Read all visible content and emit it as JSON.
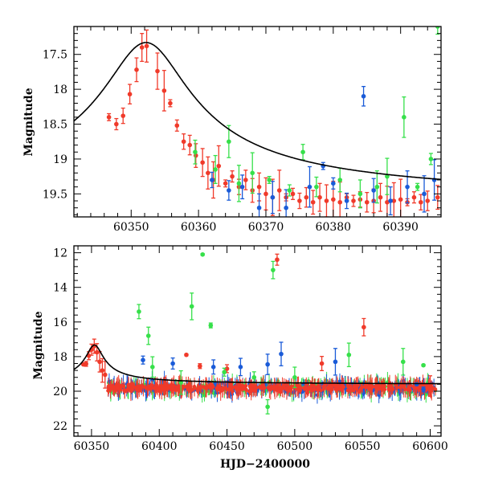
{
  "chart_data": [
    {
      "type": "scatter",
      "panel": "top",
      "title": "",
      "xlabel": "",
      "ylabel": "Magnitude",
      "xlim": [
        60341.5,
        60396
      ],
      "ylim": [
        19.83,
        17.1
      ],
      "y_inverted": true,
      "xticks": [
        60350,
        60360,
        60370,
        60380,
        60390
      ],
      "yticks": [
        17.5,
        18,
        18.5,
        19,
        19.5
      ],
      "grid": false,
      "legend": "none",
      "model_curve": {
        "color": "#000000",
        "peak_time": 60352.2,
        "peak_mag": 17.33,
        "baseline_mag": 19.62
      },
      "series": [
        {
          "color": "#f03a2a",
          "points": [
            [
              60346.7,
              18.4
            ],
            [
              60347.8,
              18.5
            ],
            [
              60348.8,
              18.38
            ],
            [
              60349.8,
              18.07
            ],
            [
              60350.8,
              17.72
            ],
            [
              60351.6,
              17.4
            ],
            [
              60352.3,
              17.38
            ],
            [
              60353.9,
              17.74
            ],
            [
              60354.9,
              18.02
            ],
            [
              60355.8,
              18.2
            ],
            [
              60356.8,
              18.52
            ],
            [
              60357.8,
              18.75
            ],
            [
              60358.7,
              18.8
            ],
            [
              60359.6,
              18.95
            ],
            [
              60360.6,
              19.05
            ],
            [
              60361.4,
              19.2
            ],
            [
              60362.2,
              19.3
            ],
            [
              60363.0,
              19.1
            ],
            [
              60364.0,
              19.35
            ],
            [
              60365.0,
              19.25
            ],
            [
              60366.0,
              19.4
            ],
            [
              60367.0,
              19.3
            ],
            [
              60368.0,
              19.45
            ],
            [
              60369.0,
              19.4
            ],
            [
              60370.0,
              19.5
            ],
            [
              60371.0,
              19.55
            ],
            [
              60372.0,
              19.45
            ],
            [
              60373.0,
              19.55
            ],
            [
              60374.0,
              19.5
            ],
            [
              60375.0,
              19.6
            ],
            [
              60376.0,
              19.55
            ],
            [
              60377.0,
              19.62
            ],
            [
              60378.0,
              19.55
            ],
            [
              60379.0,
              19.6
            ],
            [
              60380.0,
              19.58
            ],
            [
              60381.0,
              19.62
            ],
            [
              60382.0,
              19.55
            ],
            [
              60383.0,
              19.6
            ],
            [
              60384.0,
              19.58
            ],
            [
              60385.0,
              19.62
            ],
            [
              60386.0,
              19.6
            ],
            [
              60387.0,
              19.55
            ],
            [
              60388.0,
              19.62
            ],
            [
              60389.0,
              19.6
            ],
            [
              60390.0,
              19.58
            ],
            [
              60391.0,
              19.62
            ],
            [
              60392.0,
              19.55
            ],
            [
              60393.0,
              19.62
            ],
            [
              60394.0,
              19.6
            ],
            [
              60395.5,
              19.55
            ]
          ]
        },
        {
          "color": "#1a5bd8",
          "points": [
            [
              60362.0,
              19.3
            ],
            [
              60364.5,
              19.45
            ],
            [
              60366.5,
              19.4
            ],
            [
              60369.0,
              19.7
            ],
            [
              60371.0,
              19.55
            ],
            [
              60373.0,
              19.7
            ],
            [
              60376.5,
              19.4
            ],
            [
              60378.5,
              19.1
            ],
            [
              60380.0,
              19.35
            ],
            [
              60382.0,
              19.6
            ],
            [
              60384.5,
              18.1
            ],
            [
              60386.0,
              19.45
            ],
            [
              60388.5,
              19.6
            ],
            [
              60391.0,
              19.4
            ],
            [
              60393.5,
              19.5
            ],
            [
              60395.0,
              19.3
            ]
          ]
        },
        {
          "color": "#36e04a",
          "points": [
            [
              60359.5,
              18.9
            ],
            [
              60362.5,
              19.15
            ],
            [
              60364.5,
              18.75
            ],
            [
              60366.0,
              19.35
            ],
            [
              60368.0,
              19.2
            ],
            [
              60370.5,
              19.3
            ],
            [
              60373.5,
              19.45
            ],
            [
              60375.5,
              18.9
            ],
            [
              60377.5,
              19.4
            ],
            [
              60381.0,
              19.3
            ],
            [
              60384.0,
              19.5
            ],
            [
              60386.5,
              19.4
            ],
            [
              60388.0,
              19.25
            ],
            [
              60390.5,
              18.4
            ],
            [
              60392.5,
              19.4
            ],
            [
              60394.5,
              19.0
            ],
            [
              60395.5,
              17.1
            ]
          ]
        }
      ]
    },
    {
      "type": "scatter",
      "panel": "bottom",
      "title": "",
      "xlabel": "HJD−2400000",
      "ylabel": "Magnitude",
      "xlim": [
        60337,
        60608
      ],
      "ylim": [
        22.6,
        11.6
      ],
      "y_inverted": true,
      "xticks": [
        60350,
        60400,
        60450,
        60500,
        60550,
        60600
      ],
      "yticks": [
        12,
        14,
        16,
        18,
        20,
        22
      ],
      "grid": false,
      "legend": "none",
      "model_curve": {
        "color": "#000000",
        "peak_time": 60352.2,
        "peak_mag": 17.33,
        "baseline_mag": 19.62
      },
      "series": [
        {
          "color": "#f03a2a",
          "points": [
            [
              60344,
              18.45
            ],
            [
              60346,
              18.42
            ],
            [
              60348,
              17.95
            ],
            [
              60350,
              17.6
            ],
            [
              60352,
              17.4
            ],
            [
              60354,
              17.75
            ],
            [
              60356,
              18.3
            ],
            [
              60358,
              18.8
            ],
            [
              60360,
              19.05
            ],
            [
              60420,
              17.9
            ],
            [
              60430,
              18.55
            ],
            [
              60450,
              18.7
            ],
            [
              60487,
              12.4
            ],
            [
              60520,
              18.4
            ],
            [
              60551,
              16.3
            ],
            [
              60600,
              19.7
            ]
          ]
        },
        {
          "color": "#1a5bd8",
          "points": [
            [
              60388,
              18.2
            ],
            [
              60410,
              18.4
            ],
            [
              60440,
              18.6
            ],
            [
              60460,
              18.6
            ],
            [
              60480,
              18.45
            ],
            [
              60490,
              17.85
            ],
            [
              60530,
              18.3
            ],
            [
              60590,
              19.6
            ],
            [
              60595,
              19.9
            ]
          ]
        },
        {
          "color": "#36e04a",
          "points": [
            [
              60385,
              15.4
            ],
            [
              60392,
              16.8
            ],
            [
              60395,
              18.6
            ],
            [
              60416,
              19.5
            ],
            [
              60424,
              15.1
            ],
            [
              60432,
              12.1
            ],
            [
              60438,
              16.2
            ],
            [
              60448,
              18.9
            ],
            [
              60470,
              19.2
            ],
            [
              60480,
              20.9
            ],
            [
              60484,
              13.0
            ],
            [
              60500,
              19.2
            ],
            [
              60540,
              17.9
            ],
            [
              60580,
              18.3
            ],
            [
              60595,
              18.5
            ]
          ]
        }
      ],
      "dense_baseline": {
        "x_range": [
          60362,
          60604
        ],
        "mean_mag": 19.8,
        "note": ""
      }
    }
  ]
}
